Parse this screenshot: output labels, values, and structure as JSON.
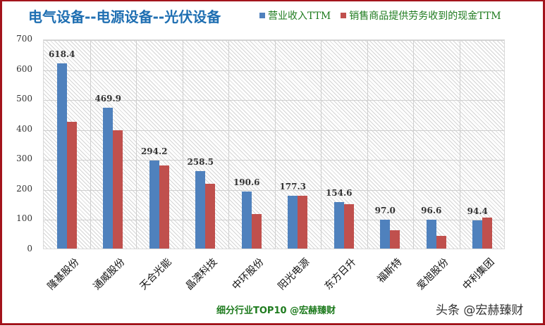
{
  "header": {
    "title": "电气设备--电源设备--光伏设备"
  },
  "legend": [
    {
      "label": "营业收入TTM",
      "color": "#4f81bd"
    },
    {
      "label": "销售商品提供劳务收到的现金TTM",
      "color": "#c0504d"
    }
  ],
  "footer": {
    "left": "细分行业TOP10 @宏赫臻财",
    "right": "头条 @宏赫臻财"
  },
  "y_ticks": [
    "0",
    "100",
    "200",
    "300",
    "400",
    "500",
    "600",
    "700"
  ],
  "chart_data": {
    "type": "bar",
    "title": "电气设备--电源设备--光伏设备",
    "xlabel": "",
    "ylabel": "",
    "ylim": [
      0,
      700
    ],
    "yticks": [
      0,
      100,
      200,
      300,
      400,
      500,
      600,
      700
    ],
    "grid": true,
    "legend_position": "top-right",
    "categories": [
      "隆基股份",
      "通威股份",
      "天合光能",
      "晶澳科技",
      "中环股份",
      "阳光电源",
      "东方日升",
      "福斯特",
      "爱旭股份",
      "中利集团"
    ],
    "series": [
      {
        "name": "营业收入TTM",
        "color": "#4f81bd",
        "values": [
          618.4,
          469.9,
          294.2,
          258.5,
          190.6,
          177.3,
          154.6,
          97.0,
          96.6,
          94.4
        ],
        "data_labels": [
          "618.4",
          "469.9",
          "294.2",
          "258.5",
          "190.6",
          "177.3",
          "154.6",
          "97.0",
          "96.6",
          "94.4"
        ]
      },
      {
        "name": "销售商品提供劳务收到的现金TTM",
        "color": "#c0504d",
        "values": [
          423,
          395,
          277,
          216,
          115,
          177,
          148,
          61,
          42,
          103
        ]
      }
    ]
  }
}
